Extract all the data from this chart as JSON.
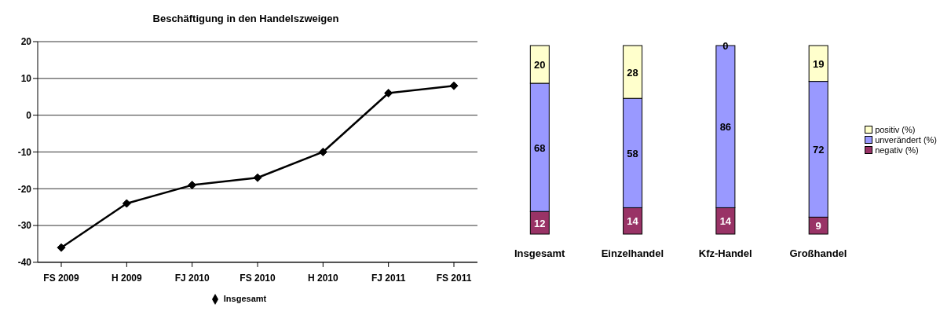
{
  "chart_data": [
    {
      "type": "line",
      "title": "Beschäftigung in den Handelszweigen",
      "categories": [
        "FS 2009",
        "H 2009",
        "FJ 2010",
        "FS 2010",
        "H 2010",
        "FJ 2011",
        "FS 2011"
      ],
      "series": [
        {
          "name": "Insgesamt",
          "color": "#000000",
          "values": [
            -36,
            -24,
            -19,
            -17,
            -10,
            6,
            8
          ]
        }
      ],
      "ylim": [
        -40,
        20
      ],
      "yticks": [
        -40,
        -30,
        -20,
        -10,
        0,
        10,
        20
      ],
      "grid": "y",
      "legend": "bottom",
      "marker": "diamond",
      "line_style": "solid"
    },
    {
      "type": "bar",
      "stacked": true,
      "categories": [
        "Insgesamt",
        "Einzelhandel",
        "Kfz-Handel",
        "Großhandel"
      ],
      "series": [
        {
          "name": "negativ (%)",
          "color": "#993366",
          "values": [
            12,
            14,
            14,
            9
          ]
        },
        {
          "name": "unverändert (%)",
          "color": "#9999ff",
          "values": [
            68,
            58,
            86,
            72
          ]
        },
        {
          "name": "positiv (%)",
          "color": "#ffffcc",
          "values": [
            20,
            28,
            0,
            19
          ]
        }
      ],
      "data_labels": true,
      "legend": "right"
    }
  ]
}
